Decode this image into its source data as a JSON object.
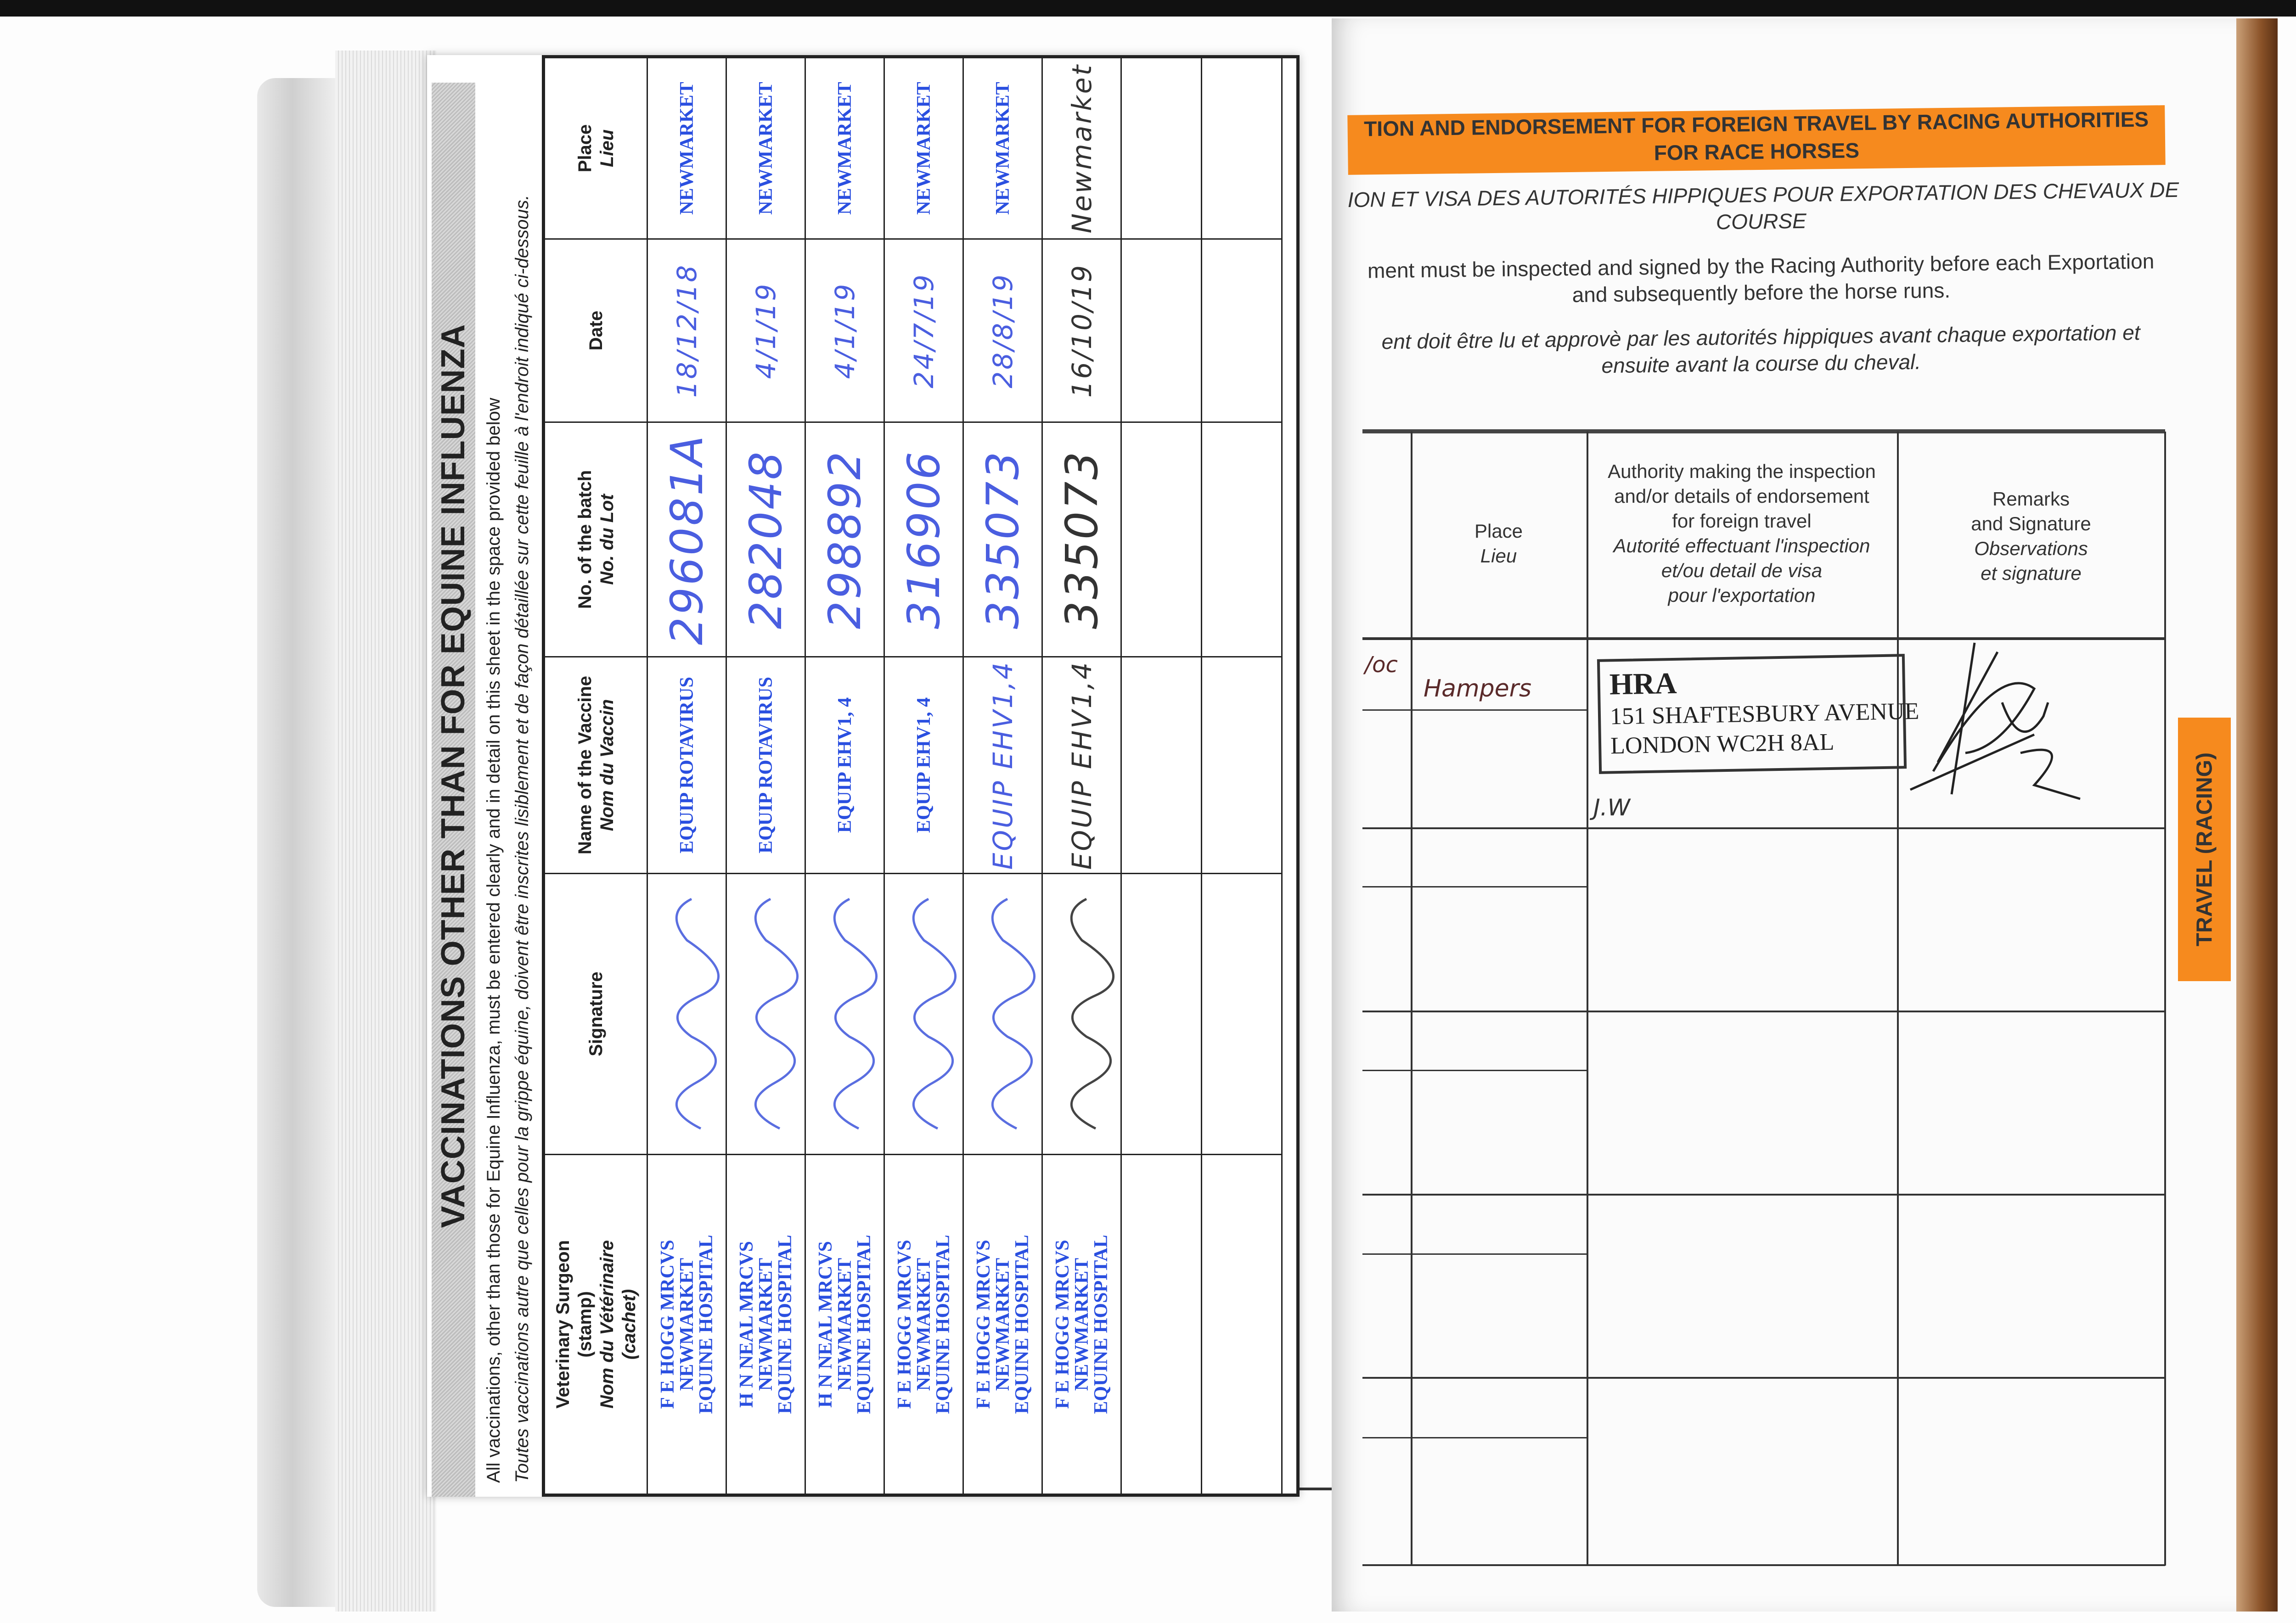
{
  "left_sheet": {
    "title": "VACCINATIONS OTHER THAN FOR EQUINE INFLUENZA",
    "note_en": "All vaccinations, other than those for Equine Influenza, must be entered clearly and in detail on this sheet in the space provided below",
    "note_fr": "Toutes vaccinations autre que celles pour la grippe équine, doivent être inscrites lisiblement et de façon détaillée sur cette feuille à l'endroit indiqué ci-dessous.",
    "columns": [
      {
        "en": "Veterinary Surgeon",
        "sub": "(stamp)",
        "fr": "Nom du Vétérinaire",
        "fr_sub": "(cachet)"
      },
      {
        "en": "Signature",
        "sub": "",
        "fr": "",
        "fr_sub": ""
      },
      {
        "en": "Name of the Vaccine",
        "sub": "",
        "fr": "Nom du Vaccin",
        "fr_sub": ""
      },
      {
        "en": "No. of the batch",
        "sub": "",
        "fr": "No. du Lot",
        "fr_sub": ""
      },
      {
        "en": "Date",
        "sub": "",
        "fr": "",
        "fr_sub": ""
      },
      {
        "en": "Place",
        "sub": "",
        "fr": "Lieu",
        "fr_sub": ""
      }
    ],
    "rows": [
      {
        "surgeon": [
          "F E HOGG MRCVS",
          "NEWMARKET",
          "EQUINE HOSPITAL"
        ],
        "vaccine": "EQUIP ROTAVIRUS",
        "batch": "296081A",
        "date": "18/12/18",
        "place": "NEWMARKET",
        "ink": "blue"
      },
      {
        "surgeon": [
          "H N NEAL MRCVS",
          "NEWMARKET",
          "EQUINE HOSPITAL"
        ],
        "vaccine": "EQUIP ROTAVIRUS",
        "batch": "282048",
        "date": "4/1/19",
        "place": "NEWMARKET",
        "ink": "blue"
      },
      {
        "surgeon": [
          "H N NEAL MRCVS",
          "NEWMARKET",
          "EQUINE HOSPITAL"
        ],
        "vaccine": "EQUIP EHV1, 4",
        "batch": "298892",
        "date": "4/1/19",
        "place": "NEWMARKET",
        "ink": "blue"
      },
      {
        "surgeon": [
          "F E HOGG MRCVS",
          "NEWMARKET",
          "EQUINE HOSPITAL"
        ],
        "vaccine": "EQUIP EHV1, 4",
        "batch": "316906",
        "date": "24/7/19",
        "place": "NEWMARKET",
        "ink": "blue"
      },
      {
        "surgeon": [
          "F E HOGG MRCVS",
          "NEWMARKET",
          "EQUINE HOSPITAL"
        ],
        "vaccine": "EQUIP EHV1,4",
        "batch": "335073",
        "date": "28/8/19",
        "place": "NEWMARKET",
        "ink": "blue"
      },
      {
        "surgeon": [
          "F E HOGG MRCVS",
          "NEWMARKET",
          "EQUINE HOSPITAL"
        ],
        "vaccine": "EQUIP EHV1,4",
        "batch": "335073",
        "date": "16/10/19",
        "place": "Newmarket",
        "ink": "dark"
      }
    ]
  },
  "right_page": {
    "banner": [
      "TION AND ENDORSEMENT FOR FOREIGN TRAVEL BY RACING AUTHORITIES",
      "FOR RACE HORSES"
    ],
    "subtitle_fr": [
      "ION ET VISA DES AUTORITÉS HIPPIQUES POUR EXPORTATION DES CHEVAUX DE",
      "COURSE"
    ],
    "instruction_en": [
      "ment must be inspected and signed by the Racing Authority before each Exportation",
      "and subsequently before the horse runs."
    ],
    "instruction_fr": [
      "ent doit être lu et approvè par les autorités hippiques avant chaque exportation et",
      "ensuite avant la course du cheval."
    ],
    "headers": {
      "place": {
        "en": "Place",
        "fr": "Lieu"
      },
      "authority": {
        "en": [
          "Authority making the inspection",
          "and/or details of endorsement",
          "for foreign travel"
        ],
        "fr": [
          "Autorité effectuant l'inspection",
          "et/ou detail de visa",
          "pour l'exportation"
        ]
      },
      "remarks": {
        "en": [
          "Remarks",
          "and Signature"
        ],
        "fr": [
          "Observations",
          "et signature"
        ]
      }
    },
    "entry": {
      "date_fragment": "/oc",
      "place": "Hampers",
      "stamp": [
        "HRA",
        "151 SHAFTESBURY AVENUE",
        "LONDON WC2H 8AL"
      ],
      "initials": "J.W"
    },
    "side_tab": "TRAVEL (RACING)",
    "accent_color": "#f68a1e"
  }
}
